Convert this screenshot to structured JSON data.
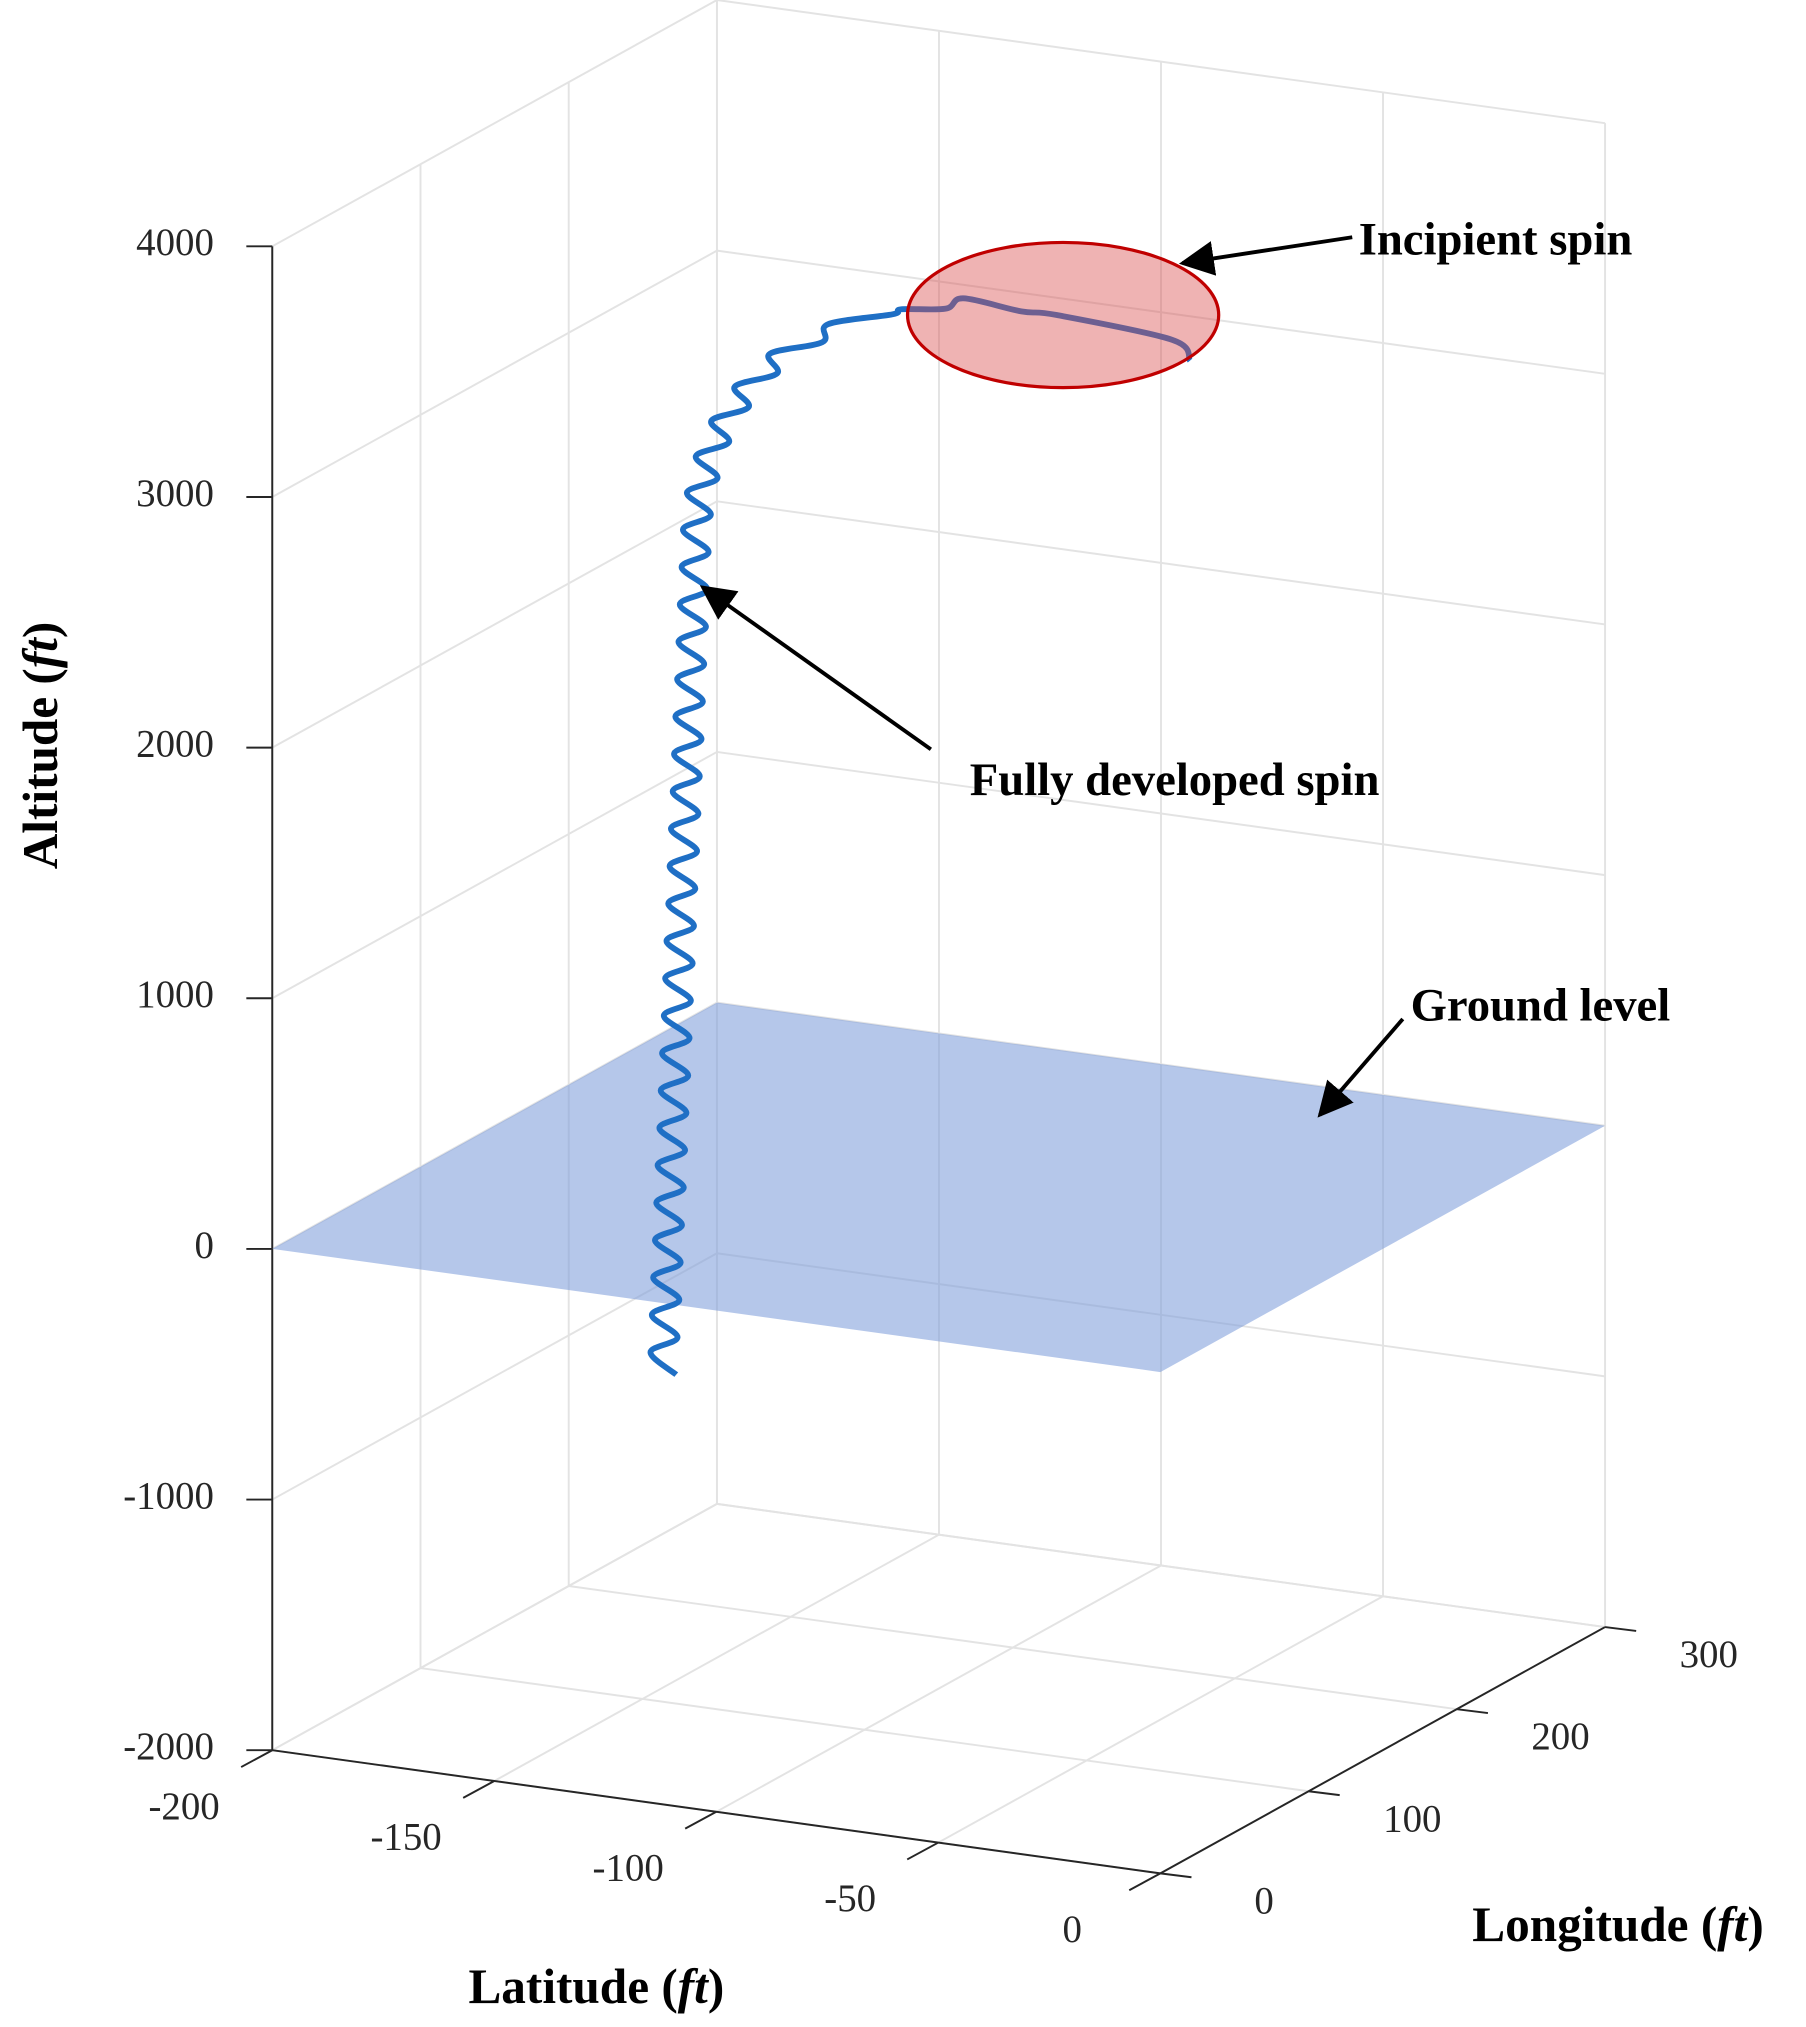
{
  "chart_data": {
    "type": "line3d",
    "xlabel": "Latitude (ft)",
    "ylabel": "Longitude (ft)",
    "zlabel": "Altitude (ft)",
    "xlim": [
      -200,
      0
    ],
    "xticks": [
      -200,
      -150,
      -100,
      -50,
      0
    ],
    "ylim": [
      0,
      300
    ],
    "yticks": [
      0,
      100,
      200,
      300
    ],
    "zlim": [
      -2000,
      4000
    ],
    "zticks": [
      -2000,
      -1000,
      0,
      1000,
      2000,
      3000,
      4000
    ],
    "grid": true,
    "ground_color": "#7f9edb",
    "series": [
      {
        "color": "#1f6fc5",
        "x": [
          0,
          -4,
          -30,
          -38,
          -51,
          -55,
          -65,
          -67,
          -81.5,
          -82.8,
          -94.6,
          -93,
          -102.5,
          -99.4,
          -107.8,
          -103.8,
          -111.3,
          -106.4,
          -113.3,
          -107.9,
          -114.2,
          -108.4,
          -114.5,
          -108.7,
          -114.9,
          -109.0,
          -115.2,
          -109.4,
          -115.5,
          -109.7,
          -115.9,
          -110.0,
          -116.2,
          -110.4,
          -116.5,
          -110.7,
          -116.9,
          -111.0,
          -117.2,
          -111.4,
          -117.5,
          -111.7,
          -117.9,
          -112.0,
          -118.2,
          -112.4,
          -118.5,
          -112.7,
          -118.9,
          -113.0,
          -119.2,
          -113.4,
          -119.5,
          -113.7,
          -119.9,
          -114.0,
          -120.2,
          -114.4,
          -120.5,
          -114.7,
          -120.9,
          -115.0,
          -121.2,
          -115.4,
          -121.5,
          -115.7
        ],
        "y": [
          20,
          20,
          20,
          20,
          20,
          20,
          20,
          20,
          20,
          20,
          20,
          20,
          20,
          20,
          20,
          20,
          20,
          20,
          20,
          20,
          20,
          20,
          20,
          20,
          20,
          20,
          20,
          20,
          20,
          20,
          20,
          20,
          20,
          20,
          20,
          20,
          20,
          20,
          20,
          20,
          20,
          20,
          20,
          20,
          20,
          20,
          20,
          20,
          20,
          20,
          20,
          20,
          20,
          20,
          20,
          20,
          20,
          20,
          20,
          20,
          20,
          20,
          20,
          20,
          20,
          20
        ],
        "z": [
          3970,
          4043,
          4078,
          4073,
          4093,
          4042,
          4015,
          3990,
          3915,
          3840,
          3765,
          3690,
          3615,
          3540,
          3465,
          3390,
          3315,
          3240,
          3165,
          3090,
          3015,
          2940,
          2865,
          2790,
          2715,
          2640,
          2565,
          2490,
          2415,
          2340,
          2265,
          2190,
          2115,
          2040,
          1965,
          1890,
          1815,
          1740,
          1665,
          1590,
          1515,
          1440,
          1365,
          1290,
          1215,
          1140,
          1065,
          990,
          915,
          840,
          765,
          690,
          615,
          540,
          465,
          390,
          315,
          240,
          165,
          90,
          15,
          -60,
          -135,
          -210,
          -285,
          -360
        ]
      }
    ],
    "annotations": [
      {
        "text": "Incipient spin"
      },
      {
        "text": "Fully developed spin"
      },
      {
        "text": "Ground level"
      }
    ]
  }
}
